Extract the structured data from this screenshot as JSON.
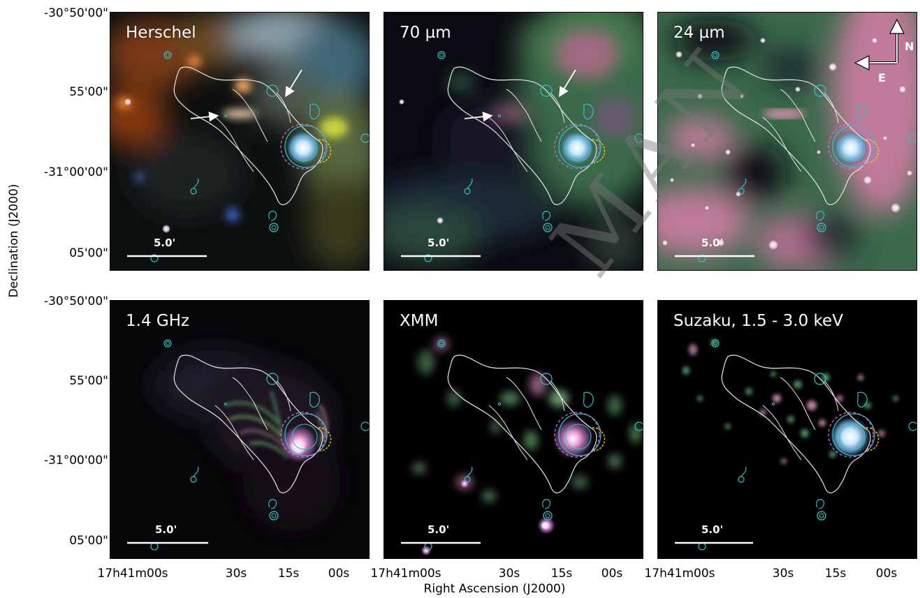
{
  "panels": {
    "herschel": {
      "label": "Herschel",
      "scalebar": "5.0'"
    },
    "mips70": {
      "label": "70 µm",
      "scalebar": "5.0'"
    },
    "mips24": {
      "label": "24 µm",
      "scalebar": "5.0'"
    },
    "radio": {
      "label": "1.4 GHz",
      "scalebar": "5.0'"
    },
    "xmm": {
      "label": "XMM",
      "scalebar": "5.0'"
    },
    "suzaku": {
      "label": "Suzaku, 1.5 - 3.0 keV",
      "scalebar": "5.0'"
    }
  },
  "compass": {
    "north": "N",
    "east": "E"
  },
  "axes": {
    "ylabel": "Declination (J2000)",
    "xlabel": "Right Ascension (J2000)",
    "dec_ticks": [
      "-30°50'00\"",
      "55'00\"",
      "-31°00'00\"",
      "05'00\""
    ],
    "ra_ticks": [
      "17h41m00s",
      "30s",
      "15s",
      "00s"
    ]
  },
  "watermark": "MAN",
  "colors": {
    "contour_white": "#e6e6e6",
    "contour_cyan": "#2ec4c4",
    "circle_magenta": "#e060e0",
    "circle_yellow": "#ffcc00",
    "arrow": "#ffffff"
  }
}
